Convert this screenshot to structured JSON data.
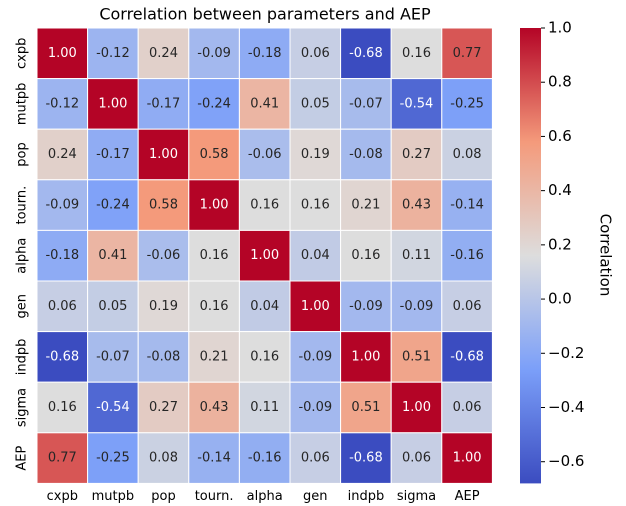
{
  "chart_data": {
    "type": "heatmap",
    "title": "Correlation between parameters and AEP",
    "categories": [
      "cxpb",
      "mutpb",
      "pop",
      "tourn.",
      "alpha",
      "gen",
      "indpb",
      "sigma",
      "AEP"
    ],
    "values": [
      [
        1.0,
        -0.12,
        0.24,
        -0.09,
        -0.18,
        0.06,
        -0.68,
        0.16,
        0.77
      ],
      [
        -0.12,
        1.0,
        -0.17,
        -0.24,
        0.41,
        0.05,
        -0.07,
        -0.54,
        -0.25
      ],
      [
        0.24,
        -0.17,
        1.0,
        0.58,
        -0.06,
        0.19,
        -0.08,
        0.27,
        0.08
      ],
      [
        -0.09,
        -0.24,
        0.58,
        1.0,
        0.16,
        0.16,
        0.21,
        0.43,
        -0.14
      ],
      [
        -0.18,
        0.41,
        -0.06,
        0.16,
        1.0,
        0.04,
        0.16,
        0.11,
        -0.16
      ],
      [
        0.06,
        0.05,
        0.19,
        0.16,
        0.04,
        1.0,
        -0.09,
        -0.09,
        0.06
      ],
      [
        -0.68,
        -0.07,
        -0.08,
        0.21,
        0.16,
        -0.09,
        1.0,
        0.51,
        -0.68
      ],
      [
        0.16,
        -0.54,
        0.27,
        0.43,
        0.11,
        -0.09,
        0.51,
        1.0,
        0.06
      ],
      [
        0.77,
        -0.25,
        0.08,
        -0.14,
        -0.16,
        0.06,
        -0.68,
        0.06,
        1.0
      ]
    ],
    "value_labels": [
      [
        "1.00",
        "-0.12",
        "0.24",
        "-0.09",
        "-0.18",
        "0.06",
        "-0.68",
        "0.16",
        "0.77"
      ],
      [
        "-0.12",
        "1.00",
        "-0.17",
        "-0.24",
        "0.41",
        "0.05",
        "-0.07",
        "-0.54",
        "-0.25"
      ],
      [
        "0.24",
        "-0.17",
        "1.00",
        "0.58",
        "-0.06",
        "0.19",
        "-0.08",
        "0.27",
        "0.08"
      ],
      [
        "-0.09",
        "-0.24",
        "0.58",
        "1.00",
        "0.16",
        "0.16",
        "0.21",
        "0.43",
        "-0.14"
      ],
      [
        "-0.18",
        "0.41",
        "-0.06",
        "0.16",
        "1.00",
        "0.04",
        "0.16",
        "0.11",
        "-0.16"
      ],
      [
        "0.06",
        "0.05",
        "0.19",
        "0.16",
        "0.04",
        "1.00",
        "-0.09",
        "-0.09",
        "0.06"
      ],
      [
        "-0.68",
        "-0.07",
        "-0.08",
        "0.21",
        "0.16",
        "-0.09",
        "1.00",
        "0.51",
        "-0.68"
      ],
      [
        "0.16",
        "-0.54",
        "0.27",
        "0.43",
        "0.11",
        "-0.09",
        "0.51",
        "1.00",
        "0.06"
      ],
      [
        "0.77",
        "-0.25",
        "0.08",
        "-0.14",
        "-0.16",
        "0.06",
        "-0.68",
        "0.06",
        "1.00"
      ]
    ],
    "colormap": "coolwarm",
    "clim": [
      -0.68,
      1.0
    ],
    "colorbar_label": "Correlation",
    "colorbar_ticks": [
      {
        "value": 1.0,
        "label": "1.0"
      },
      {
        "value": 0.8,
        "label": "0.8"
      },
      {
        "value": 0.6,
        "label": "0.6"
      },
      {
        "value": 0.4,
        "label": "0.4"
      },
      {
        "value": 0.2,
        "label": "0.2"
      },
      {
        "value": 0.0,
        "label": "0.0"
      },
      {
        "value": -0.2,
        "label": "−0.2"
      },
      {
        "value": -0.4,
        "label": "−0.4"
      },
      {
        "value": -0.6,
        "label": "−0.6"
      }
    ]
  }
}
